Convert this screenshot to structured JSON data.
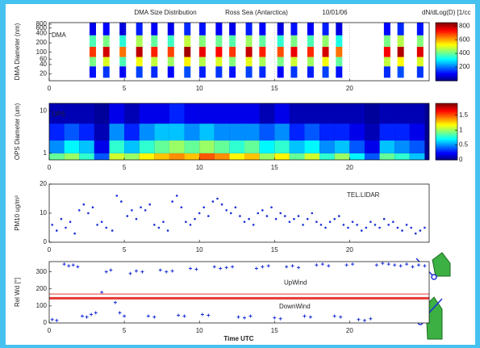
{
  "chart_data": [
    {
      "type": "heatmap",
      "title": "DMA  Size Distribution",
      "subtitle": "Ross Sea (Antarctica)",
      "date": "10/01/06",
      "label": "DMA",
      "ylabel": "DMA Diameter (nm)",
      "log_y": true,
      "background": "#ffffff",
      "xlim": [
        0,
        25.3
      ],
      "xticks": [
        0,
        5,
        10,
        15,
        20
      ],
      "ylim": [
        12,
        900
      ],
      "yticks": [
        20,
        40,
        60,
        100,
        200,
        400,
        600,
        800
      ],
      "x": [
        2.9,
        3.8,
        4.9,
        6.0,
        7.0,
        8.1,
        9.2,
        10.2,
        11.3,
        12.2,
        13.3,
        14.2,
        15.4,
        16.3,
        17.4,
        18.4,
        19.3,
        22.5,
        23.4,
        24.7
      ],
      "y": [
        15,
        35,
        70,
        150,
        350,
        900
      ],
      "z": [
        [
          120,
          420,
          700,
          380,
          90
        ],
        [
          150,
          500,
          780,
          420,
          110
        ],
        [
          100,
          380,
          650,
          350,
          80
        ],
        [
          160,
          520,
          800,
          460,
          130
        ],
        [
          140,
          480,
          720,
          400,
          100
        ],
        [
          110,
          450,
          690,
          370,
          90
        ],
        [
          170,
          540,
          820,
          480,
          140
        ],
        [
          130,
          470,
          760,
          430,
          120
        ],
        [
          150,
          500,
          740,
          410,
          100
        ],
        [
          120,
          430,
          700,
          390,
          90
        ],
        [
          160,
          510,
          790,
          450,
          130
        ],
        [
          140,
          460,
          720,
          400,
          110
        ],
        [
          110,
          420,
          680,
          360,
          80
        ],
        [
          150,
          490,
          760,
          420,
          120
        ],
        [
          130,
          450,
          710,
          380,
          100
        ],
        [
          160,
          520,
          780,
          440,
          130
        ],
        [
          120,
          400,
          650,
          340,
          80
        ],
        [
          140,
          480,
          750,
          420,
          110
        ],
        [
          170,
          530,
          810,
          470,
          140
        ],
        [
          150,
          500,
          770,
          430,
          120
        ]
      ],
      "colorbar": {
        "label": "dN/dLog(D)  [1/cc",
        "clim": [
          0,
          850
        ],
        "ticks": [
          200,
          400,
          600,
          800
        ]
      }
    },
    {
      "type": "heatmap",
      "label": "OPS",
      "ylabel": "OPS Diameter (um)",
      "log_y": true,
      "background": "#00008f",
      "xlim": [
        0,
        25.3
      ],
      "xticks": [
        0,
        5,
        10,
        15,
        20
      ],
      "ylim": [
        0.7,
        15
      ],
      "yticks": [
        1,
        10
      ],
      "x": [
        0,
        1,
        2,
        3,
        4,
        5,
        6,
        7,
        8,
        9,
        10,
        11,
        12,
        13,
        14,
        15,
        16,
        17,
        18,
        19,
        20,
        21,
        22,
        23,
        24,
        25
      ],
      "y": [
        0.7,
        1,
        2,
        5,
        15
      ],
      "z": [
        [
          0.9,
          0.5,
          0.3,
          0.1
        ],
        [
          1.0,
          0.7,
          0.4,
          0.1
        ],
        [
          0.8,
          0.6,
          0.3,
          0.1
        ],
        [
          0.4,
          0.2,
          0.1,
          0.05
        ],
        [
          1.1,
          0.8,
          0.5,
          0.2
        ],
        [
          1.0,
          0.6,
          0.3,
          0.1
        ],
        [
          1.2,
          0.8,
          0.5,
          0.2
        ],
        [
          1.3,
          0.9,
          0.6,
          0.2
        ],
        [
          1.4,
          1.0,
          0.6,
          0.3
        ],
        [
          1.3,
          0.9,
          0.5,
          0.2
        ],
        [
          1.5,
          1.0,
          0.6,
          0.2
        ],
        [
          1.4,
          0.9,
          0.5,
          0.2
        ],
        [
          1.2,
          0.8,
          0.5,
          0.2
        ],
        [
          1.3,
          0.9,
          0.5,
          0.2
        ],
        [
          1.0,
          0.7,
          0.4,
          0.1
        ],
        [
          1.2,
          0.8,
          0.5,
          0.2
        ],
        [
          0.9,
          0.6,
          0.3,
          0.1
        ],
        [
          1.1,
          0.7,
          0.4,
          0.1
        ],
        [
          0.8,
          0.5,
          0.3,
          0.1
        ],
        [
          1.0,
          0.6,
          0.3,
          0.1
        ],
        [
          0.7,
          0.4,
          0.2,
          0.1
        ],
        [
          0.4,
          0.2,
          0.1,
          0.05
        ],
        [
          0.9,
          0.6,
          0.3,
          0.1
        ],
        [
          0.8,
          0.5,
          0.3,
          0.1
        ],
        [
          0.6,
          0.4,
          0.2,
          0.1
        ]
      ],
      "colorbar": {
        "clim": [
          0,
          1.9
        ],
        "ticks": [
          0,
          0.5,
          1,
          1.5
        ]
      }
    },
    {
      "type": "scatter",
      "label": "TEL.LIDAR",
      "ylabel": "PM10 ug/m³",
      "marker": "dot",
      "color": "#1a2fd6",
      "xlim": [
        0,
        25.3
      ],
      "xticks": [
        0,
        5,
        10,
        15,
        20
      ],
      "ylim": [
        0,
        20
      ],
      "yticks": [
        0,
        10,
        20
      ],
      "x": [
        0.2,
        0.5,
        0.8,
        1.1,
        1.4,
        1.7,
        2.0,
        2.3,
        2.6,
        2.9,
        3.2,
        3.5,
        3.8,
        4.2,
        4.5,
        4.8,
        5.2,
        5.5,
        5.8,
        6.1,
        6.4,
        6.7,
        7.0,
        7.3,
        7.6,
        7.9,
        8.2,
        8.5,
        8.8,
        9.1,
        9.4,
        9.7,
        10.0,
        10.3,
        10.6,
        10.9,
        11.2,
        11.5,
        11.8,
        12.1,
        12.4,
        12.7,
        13.0,
        13.3,
        13.6,
        13.9,
        14.2,
        14.5,
        14.8,
        15.1,
        15.4,
        15.7,
        16.0,
        16.3,
        16.6,
        16.9,
        17.2,
        17.5,
        17.8,
        18.1,
        18.4,
        18.7,
        19.0,
        19.3,
        19.6,
        19.9,
        20.2,
        20.5,
        20.8,
        21.1,
        21.4,
        21.7,
        22.0,
        22.3,
        22.6,
        22.9,
        23.2,
        23.5,
        23.8,
        24.1,
        24.4,
        24.7,
        25.0
      ],
      "values": [
        6,
        4,
        8,
        5,
        7,
        3,
        11,
        13,
        10,
        12,
        6,
        7,
        5,
        4,
        16,
        14,
        9,
        11,
        8,
        12,
        11,
        13,
        6,
        5,
        7,
        4,
        14,
        16,
        12,
        7,
        6,
        8,
        10,
        12,
        9,
        14,
        15,
        13,
        11,
        10,
        12,
        9,
        7,
        8,
        6,
        10,
        11,
        9,
        12,
        8,
        10,
        9,
        7,
        8,
        9,
        6,
        8,
        10,
        7,
        6,
        5,
        7,
        8,
        9,
        6,
        5,
        7,
        6,
        4,
        5,
        7,
        6,
        5,
        8,
        6,
        7,
        5,
        4,
        6,
        5,
        3,
        4,
        5
      ]
    },
    {
      "type": "scatter",
      "ylabel": "Rel Wd [°]",
      "xlabel": "Time UTC",
      "marker": "plus",
      "color": "#1a2fd6",
      "annotations": [
        "UpWind",
        "DownWind"
      ],
      "xlim": [
        0,
        25.3
      ],
      "xticks": [
        0,
        5,
        10,
        15,
        20
      ],
      "ylim": [
        0,
        360
      ],
      "yticks": [
        0,
        100,
        200,
        300
      ],
      "hlines": [
        {
          "value": 170,
          "color": "#e53935",
          "width": 1
        },
        {
          "value": 145,
          "color": "#e53935",
          "width": 3
        }
      ],
      "x": [
        0.2,
        0.5,
        1.0,
        1.3,
        1.6,
        1.9,
        2.2,
        2.5,
        2.8,
        3.1,
        3.5,
        3.8,
        4.1,
        4.4,
        4.7,
        5.0,
        5.4,
        5.8,
        6.2,
        6.6,
        7.0,
        7.4,
        7.8,
        8.2,
        8.6,
        9.0,
        9.4,
        9.8,
        10.2,
        10.6,
        11.0,
        11.4,
        11.8,
        12.2,
        12.6,
        13.0,
        13.4,
        13.8,
        14.2,
        14.6,
        15.0,
        15.4,
        15.8,
        16.2,
        16.6,
        17.0,
        17.4,
        17.8,
        18.2,
        18.6,
        19.0,
        19.4,
        19.8,
        20.2,
        20.6,
        21.0,
        21.4,
        21.8,
        22.2,
        22.6,
        23.0,
        23.4,
        23.8,
        24.2,
        24.6,
        25.0
      ],
      "values": [
        20,
        15,
        345,
        335,
        340,
        330,
        40,
        35,
        50,
        60,
        180,
        300,
        310,
        120,
        60,
        40,
        290,
        305,
        300,
        40,
        35,
        310,
        300,
        305,
        45,
        40,
        320,
        315,
        50,
        45,
        330,
        320,
        325,
        330,
        35,
        30,
        40,
        320,
        330,
        335,
        30,
        25,
        330,
        335,
        325,
        40,
        35,
        340,
        345,
        335,
        40,
        35,
        340,
        345,
        20,
        15,
        25,
        340,
        350,
        345,
        340,
        335,
        345,
        330,
        340,
        335
      ]
    }
  ]
}
